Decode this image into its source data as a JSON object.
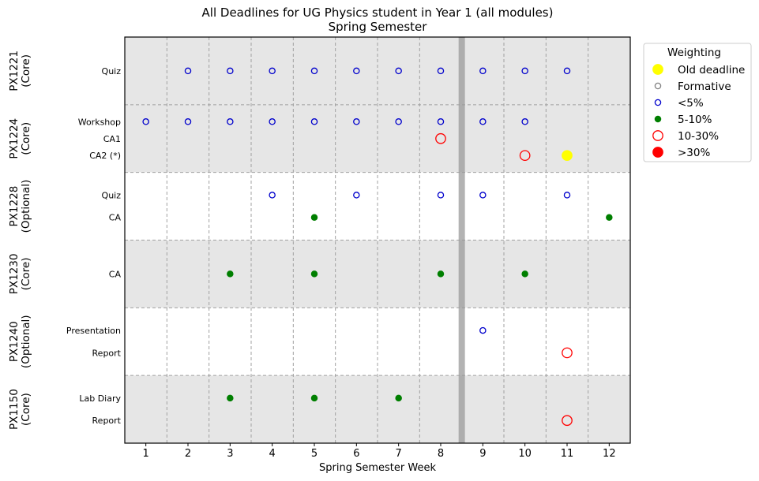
{
  "chart_data": {
    "type": "scatter",
    "title": "All Deadlines for UG Physics student in Year 1 (all modules)",
    "subtitle": "Spring Semester",
    "xlabel": "Spring Semester Week",
    "x_ticks": [
      1,
      2,
      3,
      4,
      5,
      6,
      7,
      8,
      9,
      10,
      11,
      12
    ],
    "xlim": [
      0.5,
      12.5
    ],
    "reading_week_after": 8,
    "grid": true,
    "legend": {
      "title": "Weighting",
      "placement": "outside-top-right",
      "entries": [
        {
          "key": "old",
          "label": "Old deadline"
        },
        {
          "key": "formative",
          "label": "Formative"
        },
        {
          "key": "lt5",
          "label": "<5%"
        },
        {
          "key": "5to10",
          "label": "5-10%"
        },
        {
          "key": "10to30",
          "label": "10-30%"
        },
        {
          "key": "gt30",
          "label": ">30%"
        }
      ]
    },
    "styles": {
      "old": {
        "fill": "#ffff00",
        "stroke": "#ffff00",
        "size": "large"
      },
      "formative": {
        "fill": "none",
        "stroke": "#808080",
        "size": "small"
      },
      "lt5": {
        "fill": "none",
        "stroke": "#0000cc",
        "size": "small"
      },
      "5to10": {
        "fill": "#007f00",
        "stroke": "#007f00",
        "size": "small"
      },
      "10to30": {
        "fill": "none",
        "stroke": "#ff0000",
        "size": "large"
      },
      "gt30": {
        "fill": "#ff0000",
        "stroke": "#ff0000",
        "size": "large"
      }
    },
    "modules": [
      {
        "code": "PX1221",
        "status": "(Core)",
        "shaded": true,
        "activities": [
          {
            "name": "Quiz",
            "deadlines": [
              {
                "week": 2,
                "w": "lt5"
              },
              {
                "week": 3,
                "w": "lt5"
              },
              {
                "week": 4,
                "w": "lt5"
              },
              {
                "week": 5,
                "w": "lt5"
              },
              {
                "week": 6,
                "w": "lt5"
              },
              {
                "week": 7,
                "w": "lt5"
              },
              {
                "week": 8,
                "w": "lt5"
              },
              {
                "week": 9,
                "w": "lt5"
              },
              {
                "week": 10,
                "w": "lt5"
              },
              {
                "week": 11,
                "w": "lt5"
              }
            ]
          }
        ]
      },
      {
        "code": "PX1224",
        "status": "(Core)",
        "shaded": true,
        "activities": [
          {
            "name": "Workshop",
            "deadlines": [
              {
                "week": 1,
                "w": "lt5"
              },
              {
                "week": 2,
                "w": "lt5"
              },
              {
                "week": 3,
                "w": "lt5"
              },
              {
                "week": 4,
                "w": "lt5"
              },
              {
                "week": 5,
                "w": "lt5"
              },
              {
                "week": 6,
                "w": "lt5"
              },
              {
                "week": 7,
                "w": "lt5"
              },
              {
                "week": 8,
                "w": "lt5"
              },
              {
                "week": 9,
                "w": "lt5"
              },
              {
                "week": 10,
                "w": "lt5"
              }
            ]
          },
          {
            "name": "CA1",
            "deadlines": [
              {
                "week": 8,
                "w": "10to30"
              }
            ]
          },
          {
            "name": "CA2 (*)",
            "deadlines": [
              {
                "week": 10,
                "w": "10to30"
              },
              {
                "week": 11,
                "w": "old"
              }
            ]
          }
        ]
      },
      {
        "code": "PX1228",
        "status": "(Optional)",
        "shaded": false,
        "activities": [
          {
            "name": "Quiz",
            "deadlines": [
              {
                "week": 4,
                "w": "lt5"
              },
              {
                "week": 6,
                "w": "lt5"
              },
              {
                "week": 8,
                "w": "lt5"
              },
              {
                "week": 9,
                "w": "lt5"
              },
              {
                "week": 11,
                "w": "lt5"
              }
            ]
          },
          {
            "name": "CA",
            "deadlines": [
              {
                "week": 5,
                "w": "5to10"
              },
              {
                "week": 12,
                "w": "5to10"
              }
            ]
          }
        ]
      },
      {
        "code": "PX1230",
        "status": "(Core)",
        "shaded": true,
        "activities": [
          {
            "name": "CA",
            "deadlines": [
              {
                "week": 3,
                "w": "5to10"
              },
              {
                "week": 5,
                "w": "5to10"
              },
              {
                "week": 8,
                "w": "5to10"
              },
              {
                "week": 10,
                "w": "5to10"
              }
            ]
          }
        ]
      },
      {
        "code": "PX1240",
        "status": "(Optional)",
        "shaded": false,
        "activities": [
          {
            "name": "Presentation",
            "deadlines": [
              {
                "week": 9,
                "w": "lt5"
              }
            ]
          },
          {
            "name": "Report",
            "deadlines": [
              {
                "week": 11,
                "w": "10to30"
              }
            ]
          }
        ]
      },
      {
        "code": "PX1150",
        "status": "(Core)",
        "shaded": true,
        "activities": [
          {
            "name": "Lab Diary",
            "deadlines": [
              {
                "week": 3,
                "w": "5to10"
              },
              {
                "week": 5,
                "w": "5to10"
              },
              {
                "week": 7,
                "w": "5to10"
              }
            ]
          },
          {
            "name": "Report",
            "deadlines": [
              {
                "week": 11,
                "w": "10to30"
              }
            ]
          }
        ]
      }
    ]
  }
}
